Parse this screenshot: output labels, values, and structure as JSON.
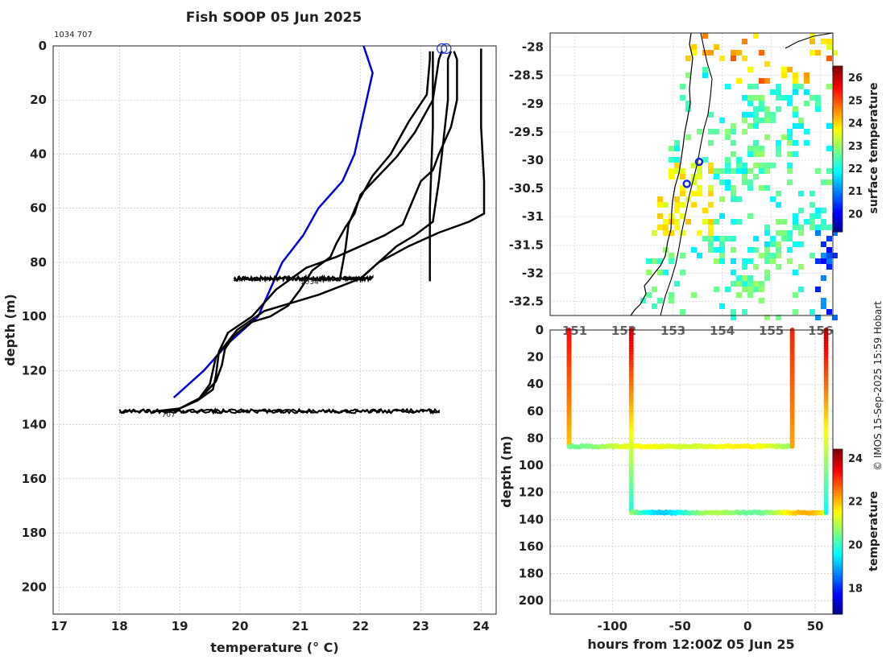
{
  "figure": {
    "title": "Fish SOOP 05 Jun 2025",
    "ids_label": "1034 707",
    "credit": "© IMOS 15-Sep-2025 15:59 Hobart"
  },
  "chart_data": [
    {
      "type": "line",
      "id": "profiles",
      "xlabel": "temperature (° C)",
      "ylabel": "depth (m)",
      "xlim": [
        16.9,
        24.25
      ],
      "ylim": [
        210,
        0
      ],
      "xticks": [
        17,
        18,
        19,
        20,
        21,
        22,
        23,
        24
      ],
      "yticks": [
        0,
        20,
        40,
        60,
        80,
        100,
        120,
        140,
        160,
        180,
        200
      ],
      "grid": true,
      "series": [
        {
          "name": "climatology",
          "color": "#0000dd",
          "points": [
            [
              22.05,
              0
            ],
            [
              22.2,
              10
            ],
            [
              22.1,
              20
            ],
            [
              21.9,
              40
            ],
            [
              21.7,
              50
            ],
            [
              21.3,
              60
            ],
            [
              21.05,
              70
            ],
            [
              20.7,
              80
            ],
            [
              20.3,
              100
            ],
            [
              19.8,
              110
            ],
            [
              19.4,
              120
            ],
            [
              18.9,
              130
            ]
          ]
        },
        {
          "name": "profile-1",
          "color": "#000000",
          "points": [
            [
              23.5,
              2
            ],
            [
              23.45,
              5
            ],
            [
              23.45,
              20
            ],
            [
              23.4,
              30
            ],
            [
              23.3,
              50
            ],
            [
              23.2,
              65
            ],
            [
              22.9,
              70
            ],
            [
              22.6,
              74
            ],
            [
              22.4,
              78
            ],
            [
              22.2,
              82
            ],
            [
              22.0,
              86
            ],
            [
              21.3,
              92
            ],
            [
              20.4,
              98
            ],
            [
              19.95,
              105
            ],
            [
              19.6,
              115
            ],
            [
              19.5,
              125
            ],
            [
              19.3,
              131
            ],
            [
              19.0,
              134
            ],
            [
              18.7,
              135
            ]
          ]
        },
        {
          "name": "profile-2",
          "color": "#000000",
          "points": [
            [
              23.55,
              2
            ],
            [
              23.6,
              5
            ],
            [
              23.6,
              20
            ],
            [
              23.5,
              30
            ],
            [
              23.3,
              40
            ],
            [
              23.2,
              46
            ],
            [
              23.0,
              50
            ],
            [
              22.7,
              66
            ],
            [
              22.4,
              70
            ],
            [
              22.0,
              74
            ],
            [
              21.6,
              78
            ],
            [
              21.1,
              82
            ],
            [
              20.6,
              90
            ],
            [
              20.2,
              100
            ],
            [
              19.8,
              106
            ],
            [
              19.65,
              113
            ],
            [
              19.6,
              122
            ],
            [
              19.55,
              127
            ],
            [
              19.3,
              131
            ],
            [
              18.9,
              135
            ]
          ]
        },
        {
          "name": "profile-3",
          "color": "#000000",
          "points": [
            [
              23.35,
              2
            ],
            [
              23.3,
              5
            ],
            [
              23.2,
              20
            ],
            [
              22.9,
              32
            ],
            [
              22.6,
              41
            ],
            [
              22.3,
              48
            ],
            [
              22.0,
              55
            ],
            [
              21.9,
              62
            ],
            [
              21.75,
              67
            ],
            [
              21.6,
              73
            ],
            [
              21.5,
              78
            ],
            [
              21.2,
              83
            ],
            [
              21.0,
              90
            ],
            [
              20.8,
              96
            ],
            [
              20.5,
              100
            ],
            [
              20.2,
              102
            ],
            [
              19.9,
              107
            ],
            [
              19.75,
              112
            ],
            [
              19.7,
              118
            ],
            [
              19.6,
              124
            ],
            [
              19.35,
              130
            ],
            [
              19.0,
              134
            ],
            [
              18.6,
              135
            ]
          ]
        },
        {
          "name": "profile-4",
          "color": "#000000",
          "points": [
            [
              23.2,
              2
            ],
            [
              23.2,
              30
            ],
            [
              23.15,
              60
            ],
            [
              23.15,
              87
            ]
          ]
        },
        {
          "name": "profile-5",
          "color": "#000000",
          "points": [
            [
              23.15,
              2
            ],
            [
              23.15,
              5
            ],
            [
              23.1,
              18
            ],
            [
              22.8,
              28
            ],
            [
              22.5,
              40
            ],
            [
              22.2,
              48
            ],
            [
              21.95,
              58
            ],
            [
              21.8,
              66
            ],
            [
              21.75,
              75
            ],
            [
              21.7,
              81
            ],
            [
              21.65,
              87
            ]
          ]
        },
        {
          "name": "profile-6",
          "color": "#000000",
          "points": [
            [
              24.0,
              1
            ],
            [
              24.0,
              30
            ],
            [
              24.05,
              50
            ],
            [
              24.05,
              62
            ],
            [
              23.8,
              65
            ],
            [
              23.3,
              69
            ],
            [
              22.8,
              74
            ],
            [
              22.3,
              80
            ],
            [
              22.0,
              86
            ]
          ]
        }
      ],
      "markers": [
        {
          "name": "surface-circle-1",
          "t": 23.35,
          "d": 1
        },
        {
          "name": "surface-circle-2",
          "t": 23.42,
          "d": 1
        }
      ],
      "drift_bands": [
        {
          "label": "1034",
          "depth": 86,
          "tmin": 19.9,
          "tmax": 22.2,
          "label_t": 21.0
        },
        {
          "label": "707",
          "depth": 135,
          "tmin": 18.0,
          "tmax": 23.3,
          "label_t": 18.7
        }
      ]
    },
    {
      "type": "heatmap",
      "id": "sst-map",
      "xlim": [
        150.5,
        156.25
      ],
      "ylim": [
        -32.75,
        -27.75
      ],
      "xticks": [
        151,
        152,
        153,
        154,
        155,
        156
      ],
      "yticks": [
        -28,
        -28.5,
        -29,
        -29.5,
        -30,
        -30.5,
        -31,
        -31.5,
        -32,
        -32.5
      ],
      "colorbar": {
        "label": "surface temperature",
        "min": 19.2,
        "max": 26.5,
        "ticks": [
          20,
          21,
          22,
          23,
          24,
          25,
          26
        ]
      },
      "deployments": [
        {
          "name": "deployment-1034",
          "lon": 153.53,
          "lat": -30.03
        },
        {
          "name": "deployment-707",
          "lon": 153.28,
          "lat": -30.42
        }
      ]
    },
    {
      "type": "scatter",
      "id": "time-depth",
      "xlabel": "hours from 12:00Z 05 Jun 25",
      "ylabel": "depth (m)",
      "xlim": [
        -146,
        63
      ],
      "ylim": [
        210,
        0
      ],
      "xticks": [
        -100,
        -50,
        0,
        50
      ],
      "yticks": [
        0,
        20,
        40,
        60,
        80,
        100,
        120,
        140,
        160,
        180,
        200
      ],
      "grid": true,
      "colorbar": {
        "label": "temperature",
        "min": 16.8,
        "max": 24.4,
        "ticks": [
          18,
          20,
          22,
          24
        ]
      },
      "tracks": [
        {
          "name": "descent-1034",
          "type": "v",
          "x": -132,
          "d0": 0,
          "d1": 86,
          "t0": 23.4,
          "t1": 22.0
        },
        {
          "name": "drift-1034",
          "type": "h",
          "d": 86,
          "x0": -132,
          "x1": 33,
          "tmin": 20.4,
          "tmax": 22.0
        },
        {
          "name": "ascent-1034",
          "type": "v",
          "x": 33,
          "d0": 86,
          "d1": 0,
          "t0": 22.2,
          "t1": 23.2
        },
        {
          "name": "descent-707",
          "type": "v",
          "x": -86,
          "d0": 0,
          "d1": 135,
          "t0": 23.8,
          "t1": 19.8
        },
        {
          "name": "drift-707",
          "type": "h",
          "d": 135,
          "x0": -86,
          "x1": 58,
          "tmin": 18.9,
          "tmax": 22.5
        },
        {
          "name": "ascent-707",
          "type": "v",
          "x": 58,
          "d0": 135,
          "d1": 0,
          "t0": 19.6,
          "t1": 23.9
        }
      ]
    }
  ]
}
